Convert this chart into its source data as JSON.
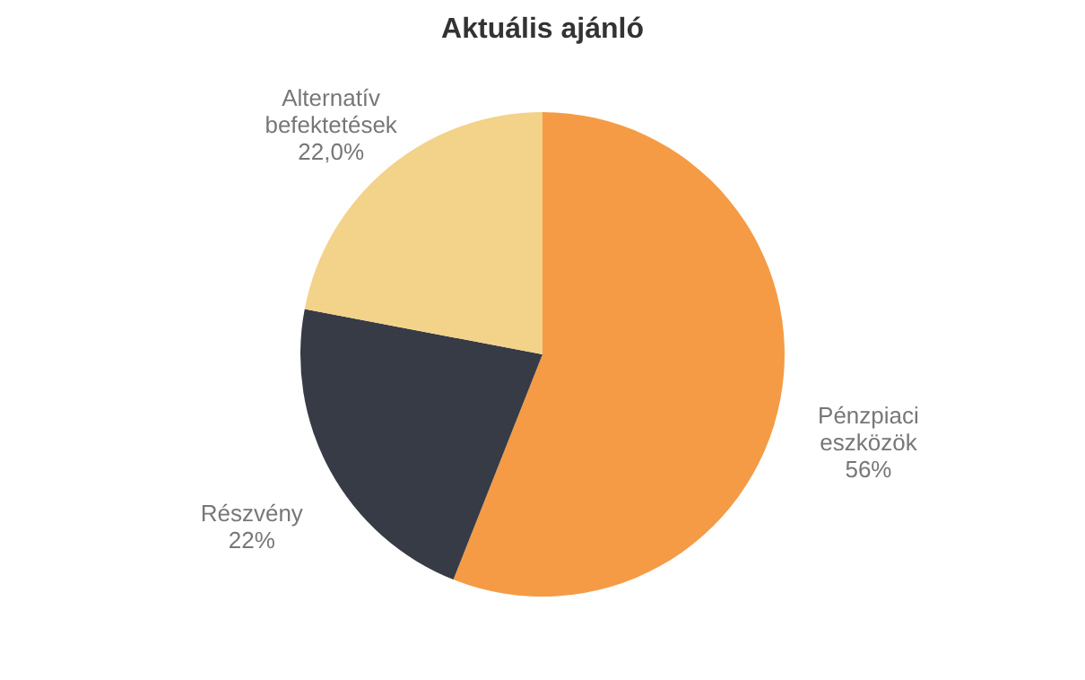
{
  "chart_data": {
    "type": "pie",
    "title": "Aktuális ajánló",
    "categories": [
      "Pénzpiaci eszközök",
      "Részvény",
      "Alternatív befektetések"
    ],
    "values": [
      56,
      22,
      22
    ],
    "value_labels": [
      "56%",
      "22%",
      "22,0%"
    ],
    "colors": [
      "#f59b45",
      "#363b45",
      "#f3d289"
    ],
    "legend": false
  }
}
